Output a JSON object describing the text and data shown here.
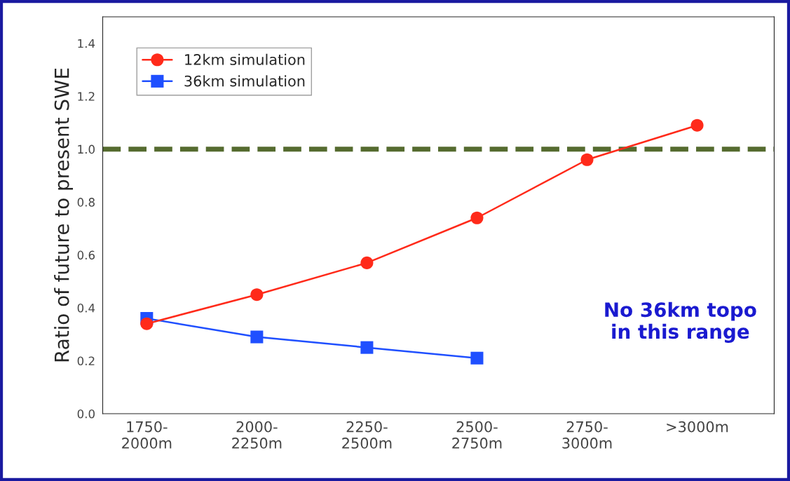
{
  "chart_data": {
    "type": "line",
    "ylabel": "Ratio of future to present SWE",
    "categories": [
      "1750-\n2000m",
      "2000-\n2250m",
      "2250-\n2500m",
      "2500-\n2750m",
      "2750-\n3000m",
      ">3000m"
    ],
    "series": [
      {
        "name": "12km simulation",
        "color": "#ff2a1a",
        "marker": "circle",
        "values": [
          0.34,
          0.45,
          0.57,
          0.74,
          0.96,
          1.09
        ]
      },
      {
        "name": "36km simulation",
        "color": "#1f4fff",
        "marker": "square",
        "values": [
          0.36,
          0.29,
          0.25,
          0.21,
          null,
          null
        ]
      }
    ],
    "ylim": [
      0,
      1.5
    ],
    "yticks": [
      {
        "value": 0,
        "label": "0.0"
      },
      {
        "value": 0.2,
        "label": "0.2"
      },
      {
        "value": 0.4,
        "label": "0.4"
      },
      {
        "value": 0.6,
        "label": "0.6"
      },
      {
        "value": 0.8,
        "label": "0.8"
      },
      {
        "value": 1.0,
        "label": "1.0"
      },
      {
        "value": 1.2,
        "label": "1.2"
      },
      {
        "value": 1.4,
        "label": "1.4"
      }
    ],
    "ref_lines": [
      {
        "axis": "y",
        "value": 1.0,
        "color": "#556b2f",
        "line_style": "dashed"
      }
    ],
    "annotations": [
      "No 36km topo\nin this range"
    ],
    "legend": "top left",
    "grid": false
  }
}
